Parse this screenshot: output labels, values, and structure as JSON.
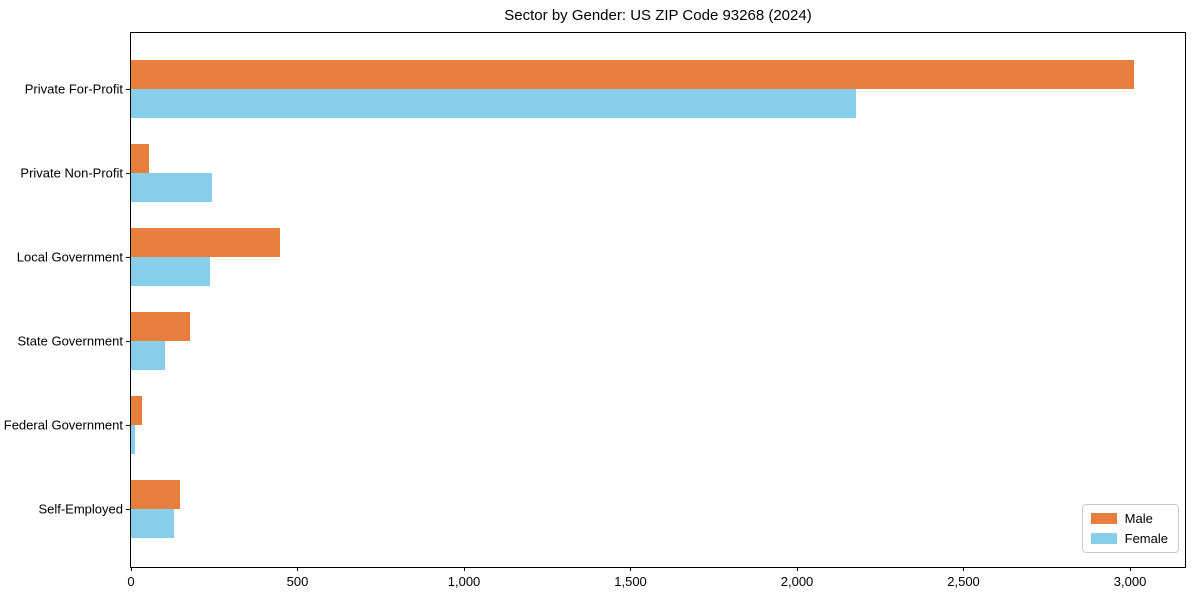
{
  "title": "Sector by Gender: US ZIP Code 93268 (2024)",
  "colors": {
    "male": "#e87e3d",
    "female": "#87ceeb",
    "spine": "#000000",
    "legend_border": "#cccccc",
    "background": "#ffffff",
    "text": "#000000"
  },
  "chart_data": {
    "type": "bar",
    "orientation": "horizontal",
    "title": "Sector by Gender: US ZIP Code 93268 (2024)",
    "categories": [
      "Private For-Profit",
      "Private Non-Profit",
      "Local Government",
      "State Government",
      "Federal Government",
      "Self-Employed"
    ],
    "series": [
      {
        "name": "Male",
        "color": "#e87e3d",
        "values": [
          3011,
          55,
          446,
          178,
          32,
          146
        ]
      },
      {
        "name": "Female",
        "color": "#87ceeb",
        "values": [
          2178,
          243,
          236,
          102,
          11,
          130
        ]
      }
    ],
    "xlabel": "",
    "ylabel": "",
    "xlim": [
      0,
      3165
    ],
    "x_ticks": [
      0,
      500,
      1000,
      1500,
      2000,
      2500,
      3000
    ],
    "x_tick_labels": [
      "0",
      "500",
      "1,000",
      "1,500",
      "2,000",
      "2,500",
      "3,000"
    ],
    "grid": false,
    "legend": {
      "position": "lower right",
      "entries": [
        "Male",
        "Female"
      ]
    }
  }
}
